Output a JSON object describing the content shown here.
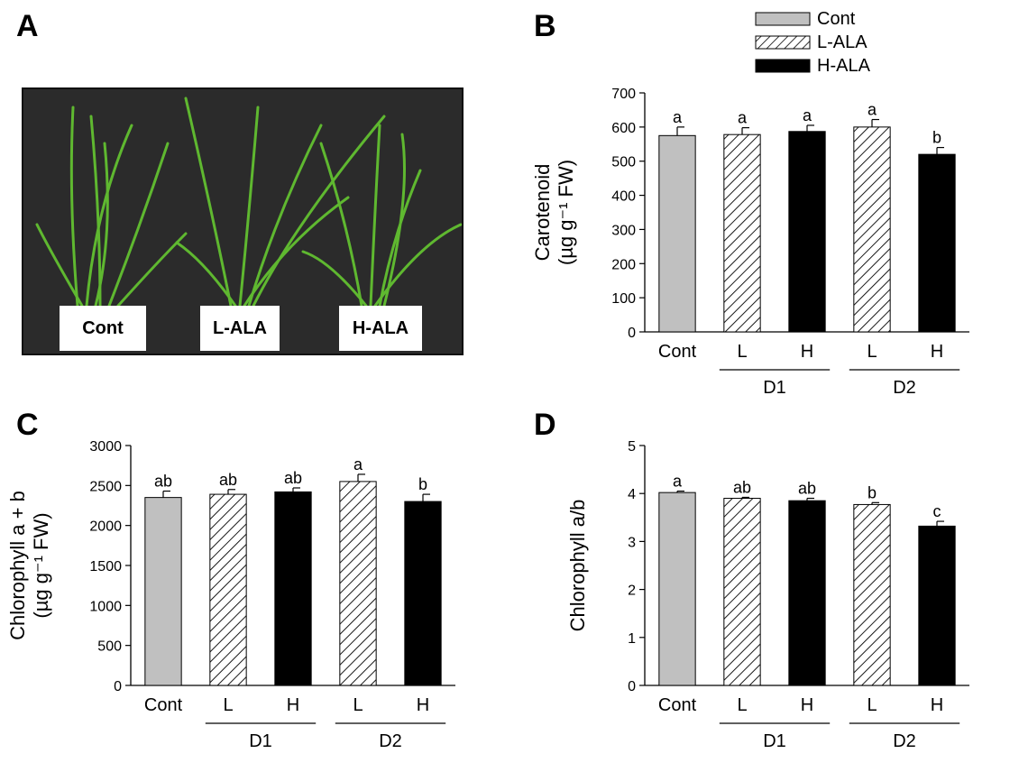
{
  "panels": {
    "a": "A",
    "b": "B",
    "c": "C",
    "d": "D"
  },
  "photo": {
    "labels": [
      "Cont",
      "L-ALA",
      "H-ALA"
    ]
  },
  "legend": [
    {
      "label": "Cont",
      "fill": "gray"
    },
    {
      "label": "L-ALA",
      "fill": "hatch"
    },
    {
      "label": "H-ALA",
      "fill": "black"
    }
  ],
  "colors": {
    "gray": "#c0c0c0",
    "black": "#000000",
    "photo_bg": "#2b2b2b",
    "leaf": "#5fb830"
  },
  "chart_data": [
    {
      "type": "bar",
      "panel": "B",
      "ylabel_lines": [
        "Carotenoid",
        "(µg g⁻¹ FW)"
      ],
      "ylim": [
        0,
        700
      ],
      "yticks": [
        0,
        100,
        200,
        300,
        400,
        500,
        600,
        700
      ],
      "categories": [
        "Cont",
        "L",
        "H",
        "L",
        "H"
      ],
      "groups": [
        {
          "label": "D1",
          "members": [
            1,
            2
          ]
        },
        {
          "label": "D2",
          "members": [
            3,
            4
          ]
        }
      ],
      "fills": [
        "gray",
        "hatch",
        "black",
        "hatch",
        "black"
      ],
      "values": [
        575,
        578,
        587,
        600,
        520
      ],
      "errors": [
        25,
        20,
        18,
        22,
        20
      ],
      "letters": [
        "a",
        "a",
        "a",
        "a",
        "b"
      ]
    },
    {
      "type": "bar",
      "panel": "C",
      "ylabel_lines": [
        "Chlorophyll a + b",
        "(µg g⁻¹ FW)"
      ],
      "ylim": [
        0,
        3000
      ],
      "yticks": [
        0,
        500,
        1000,
        1500,
        2000,
        2500,
        3000
      ],
      "categories": [
        "Cont",
        "L",
        "H",
        "L",
        "H"
      ],
      "groups": [
        {
          "label": "D1",
          "members": [
            1,
            2
          ]
        },
        {
          "label": "D2",
          "members": [
            3,
            4
          ]
        }
      ],
      "fills": [
        "gray",
        "hatch",
        "black",
        "hatch",
        "black"
      ],
      "values": [
        2350,
        2390,
        2420,
        2550,
        2300
      ],
      "errors": [
        80,
        60,
        50,
        90,
        90
      ],
      "letters": [
        "ab",
        "ab",
        "ab",
        "a",
        "b"
      ]
    },
    {
      "type": "bar",
      "panel": "D",
      "ylabel_lines": [
        "Chlorophyll a/b"
      ],
      "ylim": [
        0,
        5
      ],
      "yticks": [
        0,
        1,
        2,
        3,
        4,
        5
      ],
      "categories": [
        "Cont",
        "L",
        "H",
        "L",
        "H"
      ],
      "groups": [
        {
          "label": "D1",
          "members": [
            1,
            2
          ]
        },
        {
          "label": "D2",
          "members": [
            3,
            4
          ]
        }
      ],
      "fills": [
        "gray",
        "hatch",
        "black",
        "hatch",
        "black"
      ],
      "values": [
        4.02,
        3.9,
        3.85,
        3.77,
        3.32
      ],
      "errors": [
        0.03,
        0.02,
        0.05,
        0.04,
        0.1
      ],
      "letters": [
        "a",
        "ab",
        "ab",
        "b",
        "c"
      ]
    }
  ]
}
